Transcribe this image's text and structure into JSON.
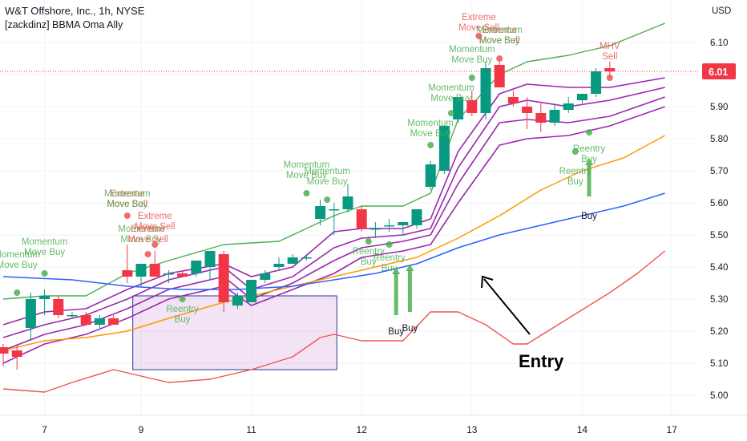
{
  "header": {
    "title": "W&T Offshore, Inc., 1h, NYSE",
    "indicator": "[zackdinz] BBMA Oma Ally"
  },
  "chart_data": {
    "type": "candlestick",
    "currency": "USD",
    "last_price": "6.01",
    "ylim": [
      4.95,
      6.2
    ],
    "y_ticks": [
      "6.10",
      "6.00",
      "5.90",
      "5.80",
      "5.70",
      "5.60",
      "5.50",
      "5.40",
      "5.30",
      "5.20",
      "5.10",
      "5.00"
    ],
    "x_ticks": [
      {
        "label": "7",
        "bar": 3
      },
      {
        "label": "9",
        "bar": 10
      },
      {
        "label": "11",
        "bar": 18
      },
      {
        "label": "12",
        "bar": 26
      },
      {
        "label": "13",
        "bar": 34
      },
      {
        "label": "14",
        "bar": 42
      },
      {
        "label": "17",
        "bar": 48.5
      }
    ],
    "candles": [
      {
        "o": 5.15,
        "h": 5.16,
        "l": 5.09,
        "c": 5.13
      },
      {
        "o": 5.14,
        "h": 5.16,
        "l": 5.08,
        "c": 5.12
      },
      {
        "o": 5.21,
        "h": 5.32,
        "l": 5.17,
        "c": 5.3
      },
      {
        "o": 5.3,
        "h": 5.33,
        "l": 5.25,
        "c": 5.31
      },
      {
        "o": 5.3,
        "h": 5.31,
        "l": 5.24,
        "c": 5.25
      },
      {
        "o": 5.25,
        "h": 5.26,
        "l": 5.24,
        "c": 5.25
      },
      {
        "o": 5.25,
        "h": 5.26,
        "l": 5.22,
        "c": 5.22
      },
      {
        "o": 5.22,
        "h": 5.25,
        "l": 5.21,
        "c": 5.24
      },
      {
        "o": 5.24,
        "h": 5.25,
        "l": 5.22,
        "c": 5.22
      },
      {
        "o": 5.39,
        "h": 5.47,
        "l": 5.35,
        "c": 5.37
      },
      {
        "o": 5.37,
        "h": 5.41,
        "l": 5.34,
        "c": 5.41
      },
      {
        "o": 5.41,
        "h": 5.45,
        "l": 5.37,
        "c": 5.37
      },
      {
        "o": 5.38,
        "h": 5.39,
        "l": 5.35,
        "c": 5.38
      },
      {
        "o": 5.38,
        "h": 5.39,
        "l": 5.37,
        "c": 5.37
      },
      {
        "o": 5.38,
        "h": 5.42,
        "l": 5.37,
        "c": 5.42
      },
      {
        "o": 5.4,
        "h": 5.45,
        "l": 5.36,
        "c": 5.45
      },
      {
        "o": 5.44,
        "h": 5.45,
        "l": 5.26,
        "c": 5.29
      },
      {
        "o": 5.28,
        "h": 5.32,
        "l": 5.27,
        "c": 5.31
      },
      {
        "o": 5.29,
        "h": 5.36,
        "l": 5.29,
        "c": 5.36
      },
      {
        "o": 5.36,
        "h": 5.39,
        "l": 5.35,
        "c": 5.38
      },
      {
        "o": 5.4,
        "h": 5.43,
        "l": 5.39,
        "c": 5.41
      },
      {
        "o": 5.41,
        "h": 5.44,
        "l": 5.41,
        "c": 5.43
      },
      {
        "o": 5.43,
        "h": 5.44,
        "l": 5.42,
        "c": 5.43
      },
      {
        "o": 5.55,
        "h": 5.61,
        "l": 5.53,
        "c": 5.59
      },
      {
        "o": 5.58,
        "h": 5.6,
        "l": 5.5,
        "c": 5.58
      },
      {
        "o": 5.58,
        "h": 5.66,
        "l": 5.57,
        "c": 5.62
      },
      {
        "o": 5.58,
        "h": 5.59,
        "l": 5.51,
        "c": 5.52
      },
      {
        "o": 5.52,
        "h": 5.54,
        "l": 5.49,
        "c": 5.52
      },
      {
        "o": 5.53,
        "h": 5.55,
        "l": 5.51,
        "c": 5.53
      },
      {
        "o": 5.53,
        "h": 5.54,
        "l": 5.5,
        "c": 5.54
      },
      {
        "o": 5.53,
        "h": 5.58,
        "l": 5.52,
        "c": 5.58
      },
      {
        "o": 5.65,
        "h": 5.73,
        "l": 5.64,
        "c": 5.72
      },
      {
        "o": 5.7,
        "h": 5.84,
        "l": 5.69,
        "c": 5.84
      },
      {
        "o": 5.86,
        "h": 5.93,
        "l": 5.85,
        "c": 5.93
      },
      {
        "o": 5.92,
        "h": 5.95,
        "l": 5.87,
        "c": 5.88
      },
      {
        "o": 5.88,
        "h": 6.04,
        "l": 5.86,
        "c": 6.02
      },
      {
        "o": 6.03,
        "h": 6.04,
        "l": 5.96,
        "c": 5.96
      },
      {
        "o": 5.93,
        "h": 5.95,
        "l": 5.9,
        "c": 5.91
      },
      {
        "o": 5.9,
        "h": 5.93,
        "l": 5.83,
        "c": 5.88
      },
      {
        "o": 5.88,
        "h": 5.91,
        "l": 5.82,
        "c": 5.85
      },
      {
        "o": 5.85,
        "h": 5.91,
        "l": 5.84,
        "c": 5.89
      },
      {
        "o": 5.89,
        "h": 5.93,
        "l": 5.88,
        "c": 5.91
      },
      {
        "o": 5.92,
        "h": 5.94,
        "l": 5.91,
        "c": 5.94
      },
      {
        "o": 5.94,
        "h": 6.02,
        "l": 5.93,
        "c": 6.01
      },
      {
        "o": 6.02,
        "h": 6.04,
        "l": 5.99,
        "c": 6.01
      }
    ],
    "x_indices_note": "",
    "lines": [
      {
        "color": "#4caf50",
        "width": 1.4,
        "values": [
          [
            0,
            5.3
          ],
          [
            3,
            5.31
          ],
          [
            6,
            5.31
          ],
          [
            9,
            5.38
          ],
          [
            12,
            5.42
          ],
          [
            16,
            5.47
          ],
          [
            20,
            5.48
          ],
          [
            24,
            5.56
          ],
          [
            26,
            5.59
          ],
          [
            29,
            5.59
          ],
          [
            31,
            5.63
          ],
          [
            33,
            5.86
          ],
          [
            36,
            6.0
          ],
          [
            38,
            6.04
          ],
          [
            41,
            6.06
          ],
          [
            44,
            6.09
          ],
          [
            48,
            6.16
          ]
        ]
      },
      {
        "color": "#9c27b0",
        "width": 1.6,
        "values": [
          [
            0,
            5.22
          ],
          [
            3,
            5.26
          ],
          [
            6,
            5.27
          ],
          [
            9,
            5.33
          ],
          [
            12,
            5.38
          ],
          [
            16,
            5.41
          ],
          [
            18,
            5.37
          ],
          [
            21,
            5.4
          ],
          [
            24,
            5.51
          ],
          [
            26,
            5.52
          ],
          [
            29,
            5.52
          ],
          [
            31,
            5.55
          ],
          [
            33,
            5.76
          ],
          [
            36,
            5.94
          ],
          [
            38,
            5.97
          ],
          [
            41,
            5.96
          ],
          [
            44,
            5.96
          ],
          [
            48,
            5.99
          ]
        ]
      },
      {
        "color": "#9c27b0",
        "width": 1.6,
        "values": [
          [
            0,
            5.18
          ],
          [
            3,
            5.22
          ],
          [
            6,
            5.25
          ],
          [
            9,
            5.3
          ],
          [
            12,
            5.36
          ],
          [
            16,
            5.4
          ],
          [
            18,
            5.33
          ],
          [
            21,
            5.37
          ],
          [
            24,
            5.46
          ],
          [
            26,
            5.49
          ],
          [
            29,
            5.5
          ],
          [
            31,
            5.52
          ],
          [
            33,
            5.71
          ],
          [
            36,
            5.9
          ],
          [
            38,
            5.92
          ],
          [
            41,
            5.9
          ],
          [
            44,
            5.92
          ],
          [
            48,
            5.96
          ]
        ]
      },
      {
        "color": "#9c27b0",
        "width": 1.6,
        "values": [
          [
            0,
            5.14
          ],
          [
            3,
            5.19
          ],
          [
            6,
            5.22
          ],
          [
            9,
            5.27
          ],
          [
            12,
            5.33
          ],
          [
            16,
            5.37
          ],
          [
            18,
            5.3
          ],
          [
            21,
            5.35
          ],
          [
            24,
            5.42
          ],
          [
            26,
            5.46
          ],
          [
            29,
            5.48
          ],
          [
            31,
            5.5
          ],
          [
            33,
            5.66
          ],
          [
            36,
            5.85
          ],
          [
            38,
            5.86
          ],
          [
            41,
            5.85
          ],
          [
            44,
            5.87
          ],
          [
            48,
            5.93
          ]
        ]
      },
      {
        "color": "#9c27b0",
        "width": 1.6,
        "values": [
          [
            0,
            5.1
          ],
          [
            3,
            5.16
          ],
          [
            6,
            5.19
          ],
          [
            9,
            5.24
          ],
          [
            12,
            5.3
          ],
          [
            16,
            5.34
          ],
          [
            18,
            5.28
          ],
          [
            21,
            5.33
          ],
          [
            24,
            5.38
          ],
          [
            26,
            5.43
          ],
          [
            29,
            5.45
          ],
          [
            31,
            5.47
          ],
          [
            33,
            5.6
          ],
          [
            36,
            5.78
          ],
          [
            38,
            5.8
          ],
          [
            41,
            5.81
          ],
          [
            44,
            5.84
          ],
          [
            48,
            5.9
          ]
        ]
      },
      {
        "color": "#ff9800",
        "width": 1.5,
        "values": [
          [
            0,
            5.14
          ],
          [
            3,
            5.17
          ],
          [
            6,
            5.18
          ],
          [
            9,
            5.2
          ],
          [
            12,
            5.24
          ],
          [
            16,
            5.29
          ],
          [
            20,
            5.33
          ],
          [
            24,
            5.37
          ],
          [
            27,
            5.4
          ],
          [
            30,
            5.43
          ],
          [
            33,
            5.49
          ],
          [
            36,
            5.56
          ],
          [
            39,
            5.64
          ],
          [
            42,
            5.7
          ],
          [
            45,
            5.74
          ],
          [
            48,
            5.81
          ]
        ]
      },
      {
        "color": "#2962ff",
        "width": 1.5,
        "values": [
          [
            0,
            5.37
          ],
          [
            5,
            5.36
          ],
          [
            9,
            5.34
          ],
          [
            13,
            5.33
          ],
          [
            17,
            5.33
          ],
          [
            21,
            5.34
          ],
          [
            24,
            5.36
          ],
          [
            27,
            5.38
          ],
          [
            30,
            5.41
          ],
          [
            33,
            5.46
          ],
          [
            36,
            5.5
          ],
          [
            39,
            5.53
          ],
          [
            42,
            5.56
          ],
          [
            45,
            5.59
          ],
          [
            48,
            5.63
          ]
        ]
      },
      {
        "color": "#ef5350",
        "width": 1.4,
        "values": [
          [
            0,
            5.02
          ],
          [
            3,
            5.01
          ],
          [
            5,
            5.04
          ],
          [
            8,
            5.08
          ],
          [
            10,
            5.06
          ],
          [
            12,
            5.04
          ],
          [
            15,
            5.05
          ],
          [
            18,
            5.08
          ],
          [
            21,
            5.12
          ],
          [
            23,
            5.18
          ],
          [
            24,
            5.19
          ],
          [
            26,
            5.17
          ],
          [
            29,
            5.17
          ],
          [
            31,
            5.26
          ],
          [
            33,
            5.26
          ],
          [
            35,
            5.22
          ],
          [
            37,
            5.16
          ],
          [
            38,
            5.16
          ],
          [
            41,
            5.24
          ],
          [
            44,
            5.32
          ],
          [
            46,
            5.38
          ],
          [
            48,
            5.45
          ]
        ]
      }
    ],
    "annotations": [
      {
        "lines": [
          "Momentum",
          "Move Buy"
        ],
        "bar": 3,
        "price": 5.47,
        "color": "#4caf50",
        "dot": 5.38
      },
      {
        "lines": [
          "Momentum",
          "Move Buy"
        ],
        "bar": 1,
        "price": 5.43,
        "color": "#4caf50",
        "dot": 5.32
      },
      {
        "lines": [
          "Extreme",
          "Move Sell"
        ],
        "bar": 9,
        "price": 5.62,
        "color": "#ef5350",
        "dot": 5.56
      },
      {
        "lines": [
          "Momentum",
          "Move Buy"
        ],
        "bar": 9,
        "price": 5.62,
        "color": "#4caf50"
      },
      {
        "lines": [
          "Momentum",
          "Move Buy"
        ],
        "bar": 10,
        "price": 5.51,
        "color": "#4caf50"
      },
      {
        "lines": [
          "Extreme",
          "Move Sell"
        ],
        "bar": 10.5,
        "price": 5.51,
        "color": "#ef5350",
        "dot": 5.44
      },
      {
        "lines": [
          "Extreme",
          "Move Sell"
        ],
        "bar": 11,
        "price": 5.55,
        "color": "#ef5350",
        "dot": 5.47
      },
      {
        "lines": [
          "Reentry",
          "Buy"
        ],
        "bar": 13,
        "price": 5.26,
        "color": "#4caf50",
        "dot": 5.3
      },
      {
        "lines": [
          "Momentum",
          "Move Buy"
        ],
        "bar": 22,
        "price": 5.71,
        "color": "#4caf50",
        "dot": 5.63
      },
      {
        "lines": [
          "Momentum",
          "Move Buy"
        ],
        "bar": 23.5,
        "price": 5.69,
        "color": "#4caf50",
        "dot": 5.61
      },
      {
        "lines": [
          "Reentry",
          "Buy"
        ],
        "bar": 26.5,
        "price": 5.44,
        "color": "#4caf50",
        "dot": 5.48
      },
      {
        "lines": [
          "Reentry",
          "Buy"
        ],
        "bar": 28,
        "price": 5.42,
        "color": "#4caf50",
        "dot": 5.47
      },
      {
        "lines": [
          "Momentum",
          "Move Buy"
        ],
        "bar": 31,
        "price": 5.84,
        "color": "#4caf50",
        "dot": 5.78
      },
      {
        "lines": [
          "Momentum",
          "Move Buy"
        ],
        "bar": 32.5,
        "price": 5.95,
        "color": "#4caf50",
        "dot": 5.88
      },
      {
        "lines": [
          "Momentum",
          "Move Buy"
        ],
        "bar": 34,
        "price": 6.07,
        "color": "#4caf50",
        "dot": 5.99
      },
      {
        "lines": [
          "Extreme",
          "Move Sell"
        ],
        "bar": 34.5,
        "price": 6.17,
        "color": "#ef5350",
        "dot": 6.12
      },
      {
        "lines": [
          "Extreme",
          "Move Sell"
        ],
        "bar": 36,
        "price": 6.13,
        "color": "#ef5350",
        "dot": 6.05
      },
      {
        "lines": [
          "Momentum",
          "Move Buy"
        ],
        "bar": 36,
        "price": 6.13,
        "color": "#4caf50"
      },
      {
        "lines": [
          "MHV",
          "Sell"
        ],
        "bar": 44,
        "price": 6.08,
        "color": "#ef5350",
        "dot": 5.99
      },
      {
        "lines": [
          "Reentry",
          "Buy"
        ],
        "bar": 42.5,
        "price": 5.76,
        "color": "#4caf50",
        "dot": 5.82
      },
      {
        "lines": [
          "Reentry",
          "Buy"
        ],
        "bar": 41.5,
        "price": 5.69,
        "color": "#4caf50",
        "dot": 5.76
      }
    ],
    "buy_arrows": [
      {
        "bar": 28.5,
        "from": 5.25,
        "to": 5.4,
        "color": "#4caf50",
        "label": "Buy",
        "label_price": 5.19
      },
      {
        "bar": 29.5,
        "from": 5.26,
        "to": 5.41,
        "color": "#4caf50",
        "label": "Buy",
        "label_price": 5.2
      },
      {
        "bar": 42.5,
        "from": 5.62,
        "to": 5.74,
        "color": "#4caf50",
        "label": "Buy",
        "label_price": 5.55
      }
    ],
    "entry_label": "Entry",
    "box": {
      "from_bar": 9.4,
      "to_bar": 24.2,
      "top": 5.31,
      "bottom": 5.08
    }
  }
}
